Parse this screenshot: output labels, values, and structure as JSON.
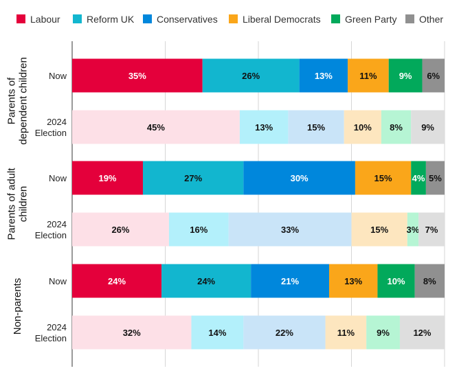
{
  "chart_data": {
    "type": "bar",
    "orientation": "horizontal",
    "stacked": true,
    "title": "",
    "xlabel": "",
    "ylabel": "",
    "xlim": [
      0,
      100
    ],
    "grid": true,
    "legend_position": "top",
    "series": [
      {
        "name": "Labour",
        "color": "#e4003b",
        "light_color": "#fde0e7"
      },
      {
        "name": "Reform UK",
        "color": "#12b6cf",
        "light_color": "#b3f0fb"
      },
      {
        "name": "Conservatives",
        "color": "#0087dc",
        "light_color": "#c9e4f8"
      },
      {
        "name": "Liberal Democrats",
        "color": "#faa61a",
        "light_color": "#fde6bf"
      },
      {
        "name": "Green Party",
        "color": "#02a95b",
        "light_color": "#b6f5d4"
      },
      {
        "name": "Other",
        "color": "#909090",
        "light_color": "#dedede"
      }
    ],
    "groups": [
      {
        "label": "Parents of dependent children",
        "label_lines": [
          "Parents of",
          "dependent children"
        ],
        "rows": [
          {
            "label": "Now",
            "label_lines": [
              "Now"
            ],
            "faded": false,
            "values": [
              35,
              26,
              13,
              11,
              9,
              6
            ],
            "value_labels": [
              "35%",
              "26%",
              "13%",
              "11%",
              "9%",
              "6%"
            ]
          },
          {
            "label": "2024 Election",
            "label_lines": [
              "2024",
              "Election"
            ],
            "faded": true,
            "values": [
              45,
              13,
              15,
              10,
              8,
              9
            ],
            "value_labels": [
              "45%",
              "13%",
              "15%",
              "10%",
              "8%",
              "9%"
            ]
          }
        ]
      },
      {
        "label": "Parents of adult children",
        "label_lines": [
          "Parents of adult",
          "children"
        ],
        "rows": [
          {
            "label": "Now",
            "label_lines": [
              "Now"
            ],
            "faded": false,
            "values": [
              19,
              27,
              30,
              15,
              4,
              5
            ],
            "value_labels": [
              "19%",
              "27%",
              "30%",
              "15%",
              "4%",
              "5%"
            ]
          },
          {
            "label": "2024 Election",
            "label_lines": [
              "2024",
              "Election"
            ],
            "faded": true,
            "values": [
              26,
              16,
              33,
              15,
              3,
              7
            ],
            "value_labels": [
              "26%",
              "16%",
              "33%",
              "15%",
              "3%",
              "7%"
            ]
          }
        ]
      },
      {
        "label": "Non-parents",
        "label_lines": [
          "Non-parents"
        ],
        "rows": [
          {
            "label": "Now",
            "label_lines": [
              "Now"
            ],
            "faded": false,
            "values": [
              24,
              24,
              21,
              13,
              10,
              8
            ],
            "value_labels": [
              "24%",
              "24%",
              "21%",
              "13%",
              "10%",
              "8%"
            ]
          },
          {
            "label": "2024 Election",
            "label_lines": [
              "2024",
              "Election"
            ],
            "faded": true,
            "values": [
              32,
              14,
              22,
              11,
              9,
              12
            ],
            "value_labels": [
              "32%",
              "14%",
              "22%",
              "11%",
              "9%",
              "12%"
            ]
          }
        ]
      }
    ]
  }
}
